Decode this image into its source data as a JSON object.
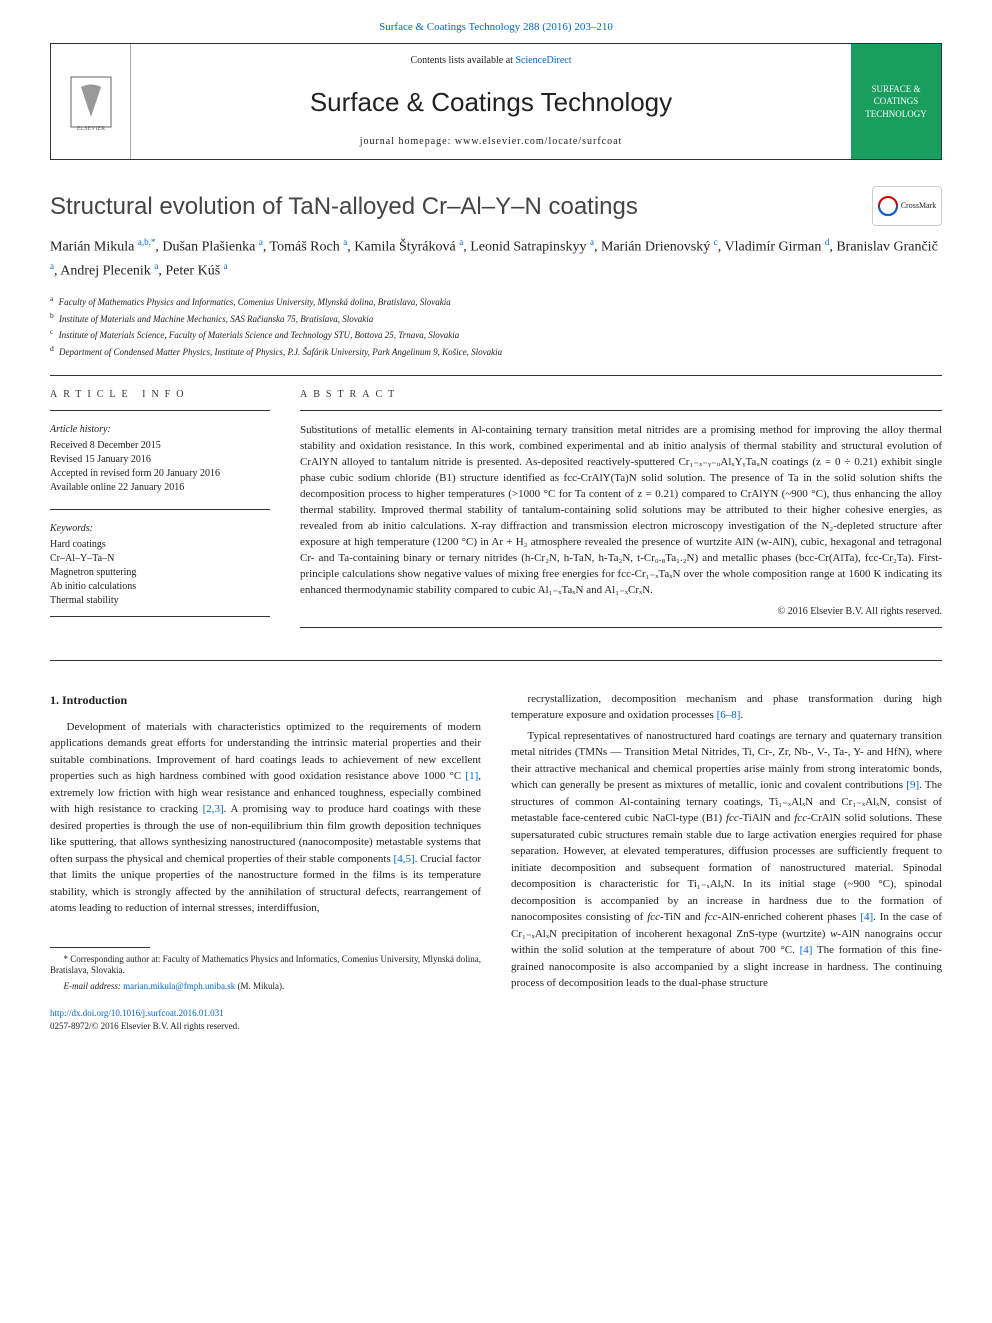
{
  "top_journal_link": "Surface & Coatings Technology 288 (2016) 203–210",
  "header": {
    "contents_prefix": "Contents lists available at ",
    "contents_link": "ScienceDirect",
    "journal_title": "Surface & Coatings Technology",
    "homepage_prefix": "journal homepage: ",
    "homepage_url": "www.elsevier.com/locate/surfcoat",
    "right_badge": "SURFACE & COATINGS TECHNOLOGY"
  },
  "crossmark_label": "CrossMark",
  "title": "Structural evolution of TaN-alloyed Cr–Al–Y–N coatings",
  "authors_html": "Marián Mikula <sup>a,b,*</sup>, Dušan Plašienka <sup>a</sup>, Tomáš Roch <sup>a</sup>, Kamila Štyráková <sup>a</sup>, Leonid Satrapinskyy <sup>a</sup>, Marián Drienovský <sup>c</sup>, Vladimír Girman <sup>d</sup>, Branislav Grančič <sup>a</sup>, Andrej Plecenik <sup>a</sup>, Peter Kúš <sup>a</sup>",
  "affiliations": [
    {
      "sup": "a",
      "text": "Faculty of Mathematics Physics and Informatics, Comenius University, Mlynská dolina, Bratislava, Slovakia"
    },
    {
      "sup": "b",
      "text": "Institute of Materials and Machine Mechanics, SAS Račianska 75, Bratislava, Slovakia"
    },
    {
      "sup": "c",
      "text": "Institute of Materials Science, Faculty of Materials Science and Technology STU, Bottova 25, Trnava, Slovakia"
    },
    {
      "sup": "d",
      "text": "Department of Condensed Matter Physics, Institute of Physics, P.J. Šafárik University, Park Angelinum 9, Košice, Slovakia"
    }
  ],
  "info": {
    "label": "ARTICLE INFO",
    "history_head": "Article history:",
    "history": [
      "Received 8 December 2015",
      "Revised 15 January 2016",
      "Accepted in revised form 20 January 2016",
      "Available online 22 January 2016"
    ],
    "keywords_head": "Keywords:",
    "keywords": [
      "Hard coatings",
      "Cr–Al–Y–Ta–N",
      "Magnetron sputtering",
      "Ab initio calculations",
      "Thermal stability"
    ]
  },
  "abstract": {
    "label": "ABSTRACT",
    "text": "Substitutions of metallic elements in Al-containing ternary transition metal nitrides are a promising method for improving the alloy thermal stability and oxidation resistance. In this work, combined experimental and ab initio analysis of thermal stability and structural evolution of CrAlYN alloyed to tantalum nitride is presented. As-deposited reactively-sputtered Cr₁₋ₓ₋ᵧ₋ᵤAlₓYᵧTaᵤN coatings (z = 0 ÷ 0.21) exhibit single phase cubic sodium chloride (B1) structure identified as fcc-CrAlY(Ta)N solid solution. The presence of Ta in the solid solution shifts the decomposition process to higher temperatures (>1000 °C for Ta content of z = 0.21) compared to CrAlYN (~900 °C), thus enhancing the alloy thermal stability. Improved thermal stability of tantalum-containing solid solutions may be attributed to their higher cohesive energies, as revealed from ab initio calculations. X-ray diffraction and transmission electron microscopy investigation of the N₂-depleted structure after exposure at high temperature (1200 °C) in Ar + H₂ atmosphere revealed the presence of wurtzite AlN (w-AlN), cubic, hexagonal and tetragonal Cr- and Ta-containing binary or ternary nitrides (h-Cr₂N, h-TaN, h-Ta₂N, t-Cr₀.₈Ta₁.₂N) and metallic phases (bcc-Cr(AlTa), fcc-Cr₂Ta). First-principle calculations show negative values of mixing free energies for fcc-Cr₁₋ₓTaₓN over the whole composition range at 1600 K indicating its enhanced thermodynamic stability compared to cubic Al₁₋ₓTaₓN and Al₁₋ₓCrₓN.",
    "copyright": "© 2016 Elsevier B.V. All rights reserved."
  },
  "body": {
    "section_heading": "1. Introduction",
    "left_paragraphs": [
      "Development of materials with characteristics optimized to the requirements of modern applications demands great efforts for understanding the intrinsic material properties and their suitable combinations. Improvement of hard coatings leads to achievement of new excellent properties such as high hardness combined with good oxidation resistance above 1000 °C [1], extremely low friction with high wear resistance and enhanced toughness, especially combined with high resistance to cracking [2,3]. A promising way to produce hard coatings with these desired properties is through the use of non-equilibrium thin film growth deposition techniques like sputtering, that allows synthesizing nanostructured (nanocomposite) metastable systems that often surpass the physical and chemical properties of their stable components [4,5]. Crucial factor that limits the unique properties of the nanostructure formed in the films is its temperature stability, which is strongly affected by the annihilation of structural defects, rearrangement of atoms leading to reduction of internal stresses, interdiffusion,"
    ],
    "right_paragraphs": [
      "recrystallization, decomposition mechanism and phase transformation during high temperature exposure and oxidation processes [6–8].",
      "Typical representatives of nanostructured hard coatings are ternary and quaternary transition metal nitrides (TMNs — Transition Metal Nitrides, Ti, Cr-, Zr, Nb-, V-, Ta-, Y- and HfN), where their attractive mechanical and chemical properties arise mainly from strong interatomic bonds, which can generally be present as mixtures of metallic, ionic and covalent contributions [9]. The structures of common Al-containing ternary coatings, Ti₁₋ₓAlₓN and Cr₁₋ₓAlₓN, consist of metastable face-centered cubic NaCl-type (B1) fcc-TiAlN and fcc-CrAlN solid solutions. These supersaturated cubic structures remain stable due to large activation energies required for phase separation. However, at elevated temperatures, diffusion processes are sufficiently frequent to initiate decomposition and subsequent formation of nanostructured material. Spinodal decomposition is characteristic for Ti₁₋ₓAlₓN. In its initial stage (~900 °C), spinodal decomposition is accompanied by an increase in hardness due to the formation of nanocomposites consisting of fcc-TiN and fcc-AlN-enriched coherent phases [4]. In the case of Cr₁₋ₓAlₓN precipitation of incoherent hexagonal ZnS-type (wurtzite) w-AlN nanograins occur within the solid solution at the temperature of about 700 °C. [4] The formation of this fine-grained nanocomposite is also accompanied by a slight increase in hardness. The continuing process of decomposition leads to the dual-phase structure"
    ]
  },
  "footnote": {
    "star": "* Corresponding author at: Faculty of Mathematics Physics and Informatics, Comenius University, Mlynská dolina, Bratislava, Slovakia.",
    "email_label": "E-mail address: ",
    "email": "marian.mikula@fmph.uniba.sk",
    "email_suffix": " (M. Mikula)."
  },
  "doi": {
    "url": "http://dx.doi.org/10.1016/j.surfcoat.2016.01.031",
    "issn_line": "0257-8972/© 2016 Elsevier B.V. All rights reserved."
  },
  "refs_in_text": {
    "r1": "[1]",
    "r23": "[2,3]",
    "r45": "[4,5]",
    "r68": "[6–8]",
    "r9": "[9]",
    "r4": "[4]"
  },
  "colors": {
    "link": "#0066cc",
    "badge_bg": "#1a9e5e",
    "elsevier_orange": "#e9711c"
  }
}
